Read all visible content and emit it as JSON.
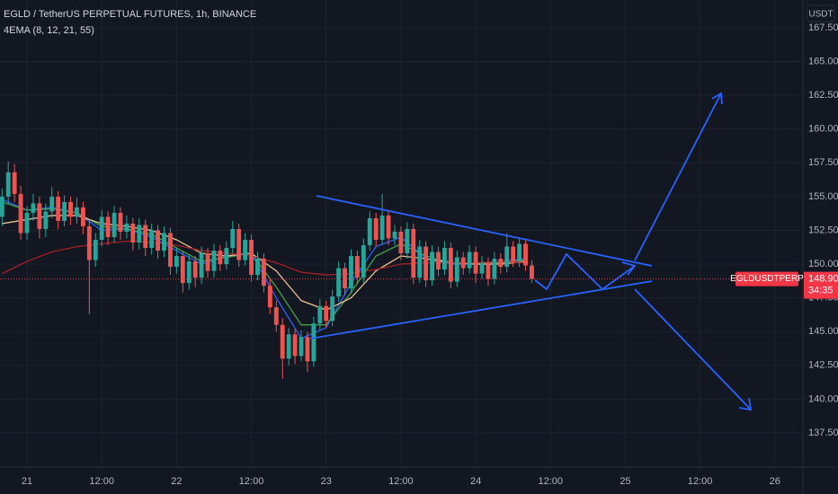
{
  "chart_data": {
    "type": "candlestick",
    "title": "EGLD / TetherUS PERPETUAL FUTURES, 1h, BINANCE",
    "indicator": "4EMA (8, 12, 21, 55)",
    "currency": "USDT",
    "symbol": "EGLDUSDTPERP",
    "last_price": 148.9,
    "last_price_label": "148.90",
    "countdown": "34:35",
    "last_price_color": "#f23645",
    "up_color": "#26a69a",
    "down_color": "#ef5350",
    "grid": true,
    "xlim": [
      -4.33,
      124.5
    ],
    "ylim": [
      134.97,
      169.56
    ],
    "yticks": [
      {
        "value": 137.5,
        "label": "137.50"
      },
      {
        "value": 140,
        "label": "140.00"
      },
      {
        "value": 142.5,
        "label": "142.50"
      },
      {
        "value": 145,
        "label": "145.00"
      },
      {
        "value": 147.5,
        "label": "147.50"
      },
      {
        "value": 150,
        "label": "150.00"
      },
      {
        "value": 152.5,
        "label": "152.50"
      },
      {
        "value": 155,
        "label": "155.00"
      },
      {
        "value": 157.5,
        "label": "157.50"
      },
      {
        "value": 160,
        "label": "160.00"
      },
      {
        "value": 162.5,
        "label": "162.50"
      },
      {
        "value": 165,
        "label": "165.00"
      },
      {
        "value": 167.5,
        "label": "167.50"
      }
    ],
    "xticks": [
      {
        "value": 0,
        "label": "21"
      },
      {
        "value": 12,
        "label": "12:00"
      },
      {
        "value": 24,
        "label": "22"
      },
      {
        "value": 36,
        "label": "12:00"
      },
      {
        "value": 48,
        "label": "23"
      },
      {
        "value": 60,
        "label": "12:00"
      },
      {
        "value": 72,
        "label": "24"
      },
      {
        "value": 84,
        "label": "12:00"
      },
      {
        "value": 96,
        "label": "25"
      },
      {
        "value": 108,
        "label": "12:00"
      },
      {
        "value": 120,
        "label": "26"
      }
    ],
    "x": [
      -4,
      -3,
      -2,
      -1,
      0,
      1,
      2,
      3,
      4,
      5,
      6,
      7,
      8,
      9,
      10,
      11,
      12,
      13,
      14,
      15,
      16,
      17,
      18,
      19,
      20,
      21,
      22,
      23,
      24,
      25,
      26,
      27,
      28,
      29,
      30,
      31,
      32,
      33,
      34,
      35,
      36,
      37,
      38,
      39,
      40,
      41,
      42,
      43,
      44,
      45,
      46,
      47,
      48,
      49,
      50,
      51,
      52,
      53,
      54,
      55,
      56,
      57,
      58,
      59,
      60,
      61,
      62,
      63,
      64,
      65,
      66,
      67,
      68,
      69,
      70,
      71,
      72,
      73,
      74,
      75,
      76,
      77,
      78,
      79,
      80,
      81
    ],
    "candles": [
      [
        153.5,
        155.6,
        152.8,
        155.0
      ],
      [
        155.0,
        157.6,
        154.4,
        156.8
      ],
      [
        156.8,
        157.4,
        154.6,
        155.2
      ],
      [
        155.2,
        155.8,
        151.8,
        152.3
      ],
      [
        152.3,
        154.3,
        151.8,
        153.8
      ],
      [
        153.8,
        155.2,
        153.2,
        154.5
      ],
      [
        154.5,
        155.0,
        151.9,
        152.6
      ],
      [
        152.6,
        154.5,
        152.0,
        153.9
      ],
      [
        153.9,
        155.7,
        153.4,
        155.0
      ],
      [
        155.0,
        155.4,
        152.6,
        153.2
      ],
      [
        153.2,
        155.1,
        152.8,
        154.6
      ],
      [
        154.6,
        155.0,
        152.9,
        153.5
      ],
      [
        153.5,
        154.9,
        153.0,
        154.2
      ],
      [
        154.2,
        154.6,
        152.2,
        152.8
      ],
      [
        152.8,
        153.2,
        146.3,
        150.3
      ],
      [
        150.3,
        152.3,
        149.8,
        151.8
      ],
      [
        151.8,
        154.0,
        151.3,
        153.5
      ],
      [
        153.5,
        153.9,
        151.4,
        152.0
      ],
      [
        152.0,
        154.3,
        151.6,
        153.8
      ],
      [
        153.8,
        154.2,
        151.8,
        152.4
      ],
      [
        152.4,
        153.6,
        151.9,
        153.0
      ],
      [
        153.0,
        153.4,
        151.0,
        151.6
      ],
      [
        151.6,
        153.4,
        151.1,
        152.9
      ],
      [
        152.9,
        153.3,
        150.6,
        151.2
      ],
      [
        151.2,
        153.0,
        150.7,
        152.5
      ],
      [
        152.5,
        152.9,
        150.4,
        151.0
      ],
      [
        151.0,
        152.8,
        150.5,
        152.3
      ],
      [
        152.3,
        152.7,
        149.2,
        149.8
      ],
      [
        149.8,
        151.2,
        149.3,
        150.6
      ],
      [
        150.6,
        151.0,
        147.9,
        148.6
      ],
      [
        148.6,
        150.7,
        148.1,
        150.2
      ],
      [
        150.2,
        150.6,
        148.3,
        149.0
      ],
      [
        149.0,
        151.3,
        148.5,
        150.8
      ],
      [
        150.8,
        151.2,
        149.0,
        149.5
      ],
      [
        149.5,
        151.5,
        149.0,
        151.0
      ],
      [
        151.0,
        151.4,
        149.5,
        150.0
      ],
      [
        150.0,
        151.7,
        149.6,
        151.2
      ],
      [
        151.2,
        153.2,
        150.8,
        152.6
      ],
      [
        152.6,
        153.0,
        149.8,
        150.3
      ],
      [
        150.3,
        152.3,
        149.9,
        151.8
      ],
      [
        151.8,
        152.2,
        148.7,
        149.2
      ],
      [
        149.2,
        150.9,
        148.8,
        150.4
      ],
      [
        150.4,
        150.8,
        147.9,
        148.4
      ],
      [
        148.4,
        148.9,
        146.3,
        146.8
      ],
      [
        146.8,
        147.3,
        145.0,
        145.5
      ],
      [
        145.5,
        146.0,
        141.5,
        143.0
      ],
      [
        143.0,
        145.3,
        142.5,
        144.8
      ],
      [
        144.8,
        145.2,
        142.6,
        143.2
      ],
      [
        143.2,
        145.1,
        142.8,
        144.6
      ],
      [
        144.6,
        145.0,
        142.0,
        142.8
      ],
      [
        142.8,
        146.1,
        142.4,
        145.6
      ],
      [
        145.6,
        147.4,
        145.1,
        146.9
      ],
      [
        146.9,
        147.3,
        145.3,
        145.8
      ],
      [
        145.8,
        148.1,
        145.4,
        147.6
      ],
      [
        147.6,
        150.2,
        147.2,
        149.7
      ],
      [
        149.7,
        150.1,
        147.7,
        148.2
      ],
      [
        148.2,
        151.1,
        147.8,
        150.6
      ],
      [
        150.6,
        151.0,
        148.5,
        149.0
      ],
      [
        149.0,
        151.9,
        148.6,
        151.4
      ],
      [
        151.4,
        153.9,
        151.0,
        153.4
      ],
      [
        153.4,
        153.8,
        151.3,
        151.8
      ],
      [
        151.8,
        155.2,
        151.4,
        153.6
      ],
      [
        153.6,
        154.0,
        151.4,
        151.9
      ],
      [
        151.9,
        152.9,
        151.4,
        152.4
      ],
      [
        152.4,
        152.8,
        150.3,
        150.8
      ],
      [
        150.8,
        153.1,
        150.4,
        152.6
      ],
      [
        152.6,
        153.0,
        148.5,
        149.0
      ],
      [
        149.0,
        151.8,
        148.6,
        151.3
      ],
      [
        151.3,
        151.7,
        148.3,
        148.8
      ],
      [
        148.8,
        151.4,
        148.4,
        150.9
      ],
      [
        150.9,
        151.3,
        149.1,
        149.6
      ],
      [
        149.6,
        151.7,
        149.2,
        151.2
      ],
      [
        151.2,
        151.6,
        148.2,
        148.7
      ],
      [
        148.7,
        151.0,
        148.3,
        150.5
      ],
      [
        150.5,
        150.9,
        149.2,
        149.7
      ],
      [
        149.7,
        151.4,
        149.3,
        150.9
      ],
      [
        150.9,
        151.3,
        148.6,
        149.3
      ],
      [
        149.3,
        150.6,
        148.9,
        150.1
      ],
      [
        150.1,
        150.5,
        148.4,
        148.9
      ],
      [
        148.9,
        150.9,
        148.5,
        150.4
      ],
      [
        150.4,
        150.8,
        149.3,
        149.8
      ],
      [
        149.8,
        152.3,
        149.4,
        151.3
      ],
      [
        151.3,
        151.7,
        149.8,
        150.2
      ],
      [
        150.2,
        152.0,
        149.8,
        151.5
      ],
      [
        151.5,
        151.9,
        149.5,
        149.9
      ],
      [
        149.9,
        150.3,
        148.6,
        148.9
      ]
    ],
    "ema_x": [
      -4,
      0,
      4,
      8,
      12,
      16,
      20,
      24,
      28,
      32,
      36,
      40,
      44,
      48,
      52,
      56,
      60,
      64,
      68,
      72,
      76,
      80
    ],
    "ema": [
      {
        "color": "#2962ff",
        "values": [
          154.8,
          154.0,
          154.2,
          153.8,
          152.5,
          152.6,
          152.0,
          151.0,
          150.0,
          150.6,
          150.8,
          147.5,
          144.5,
          145.3,
          148.6,
          151.3,
          152.0,
          150.4,
          150.0,
          150.0,
          150.2,
          150.4
        ]
      },
      {
        "color": "#43a047",
        "values": [
          154.6,
          154.0,
          154.1,
          153.8,
          152.8,
          152.6,
          152.2,
          151.2,
          150.2,
          150.5,
          150.8,
          148.3,
          145.5,
          145.5,
          147.9,
          150.6,
          151.5,
          150.6,
          150.1,
          150.0,
          150.1,
          150.3
        ]
      },
      {
        "color": "#e6c193",
        "values": [
          153.0,
          153.3,
          153.6,
          153.6,
          153.0,
          152.8,
          152.5,
          151.8,
          150.8,
          150.6,
          150.8,
          149.5,
          147.3,
          146.6,
          147.5,
          149.5,
          150.6,
          150.4,
          150.1,
          150.0,
          150.0,
          150.2
        ]
      },
      {
        "color": "#a52024",
        "values": [
          149.3,
          150.2,
          150.9,
          151.3,
          151.5,
          151.7,
          151.6,
          151.4,
          151.0,
          150.8,
          150.6,
          150.1,
          149.4,
          149.2,
          149.3,
          149.6,
          150.0,
          150.1,
          150.1,
          150.1,
          150.2,
          150.1
        ]
      }
    ]
  }
}
